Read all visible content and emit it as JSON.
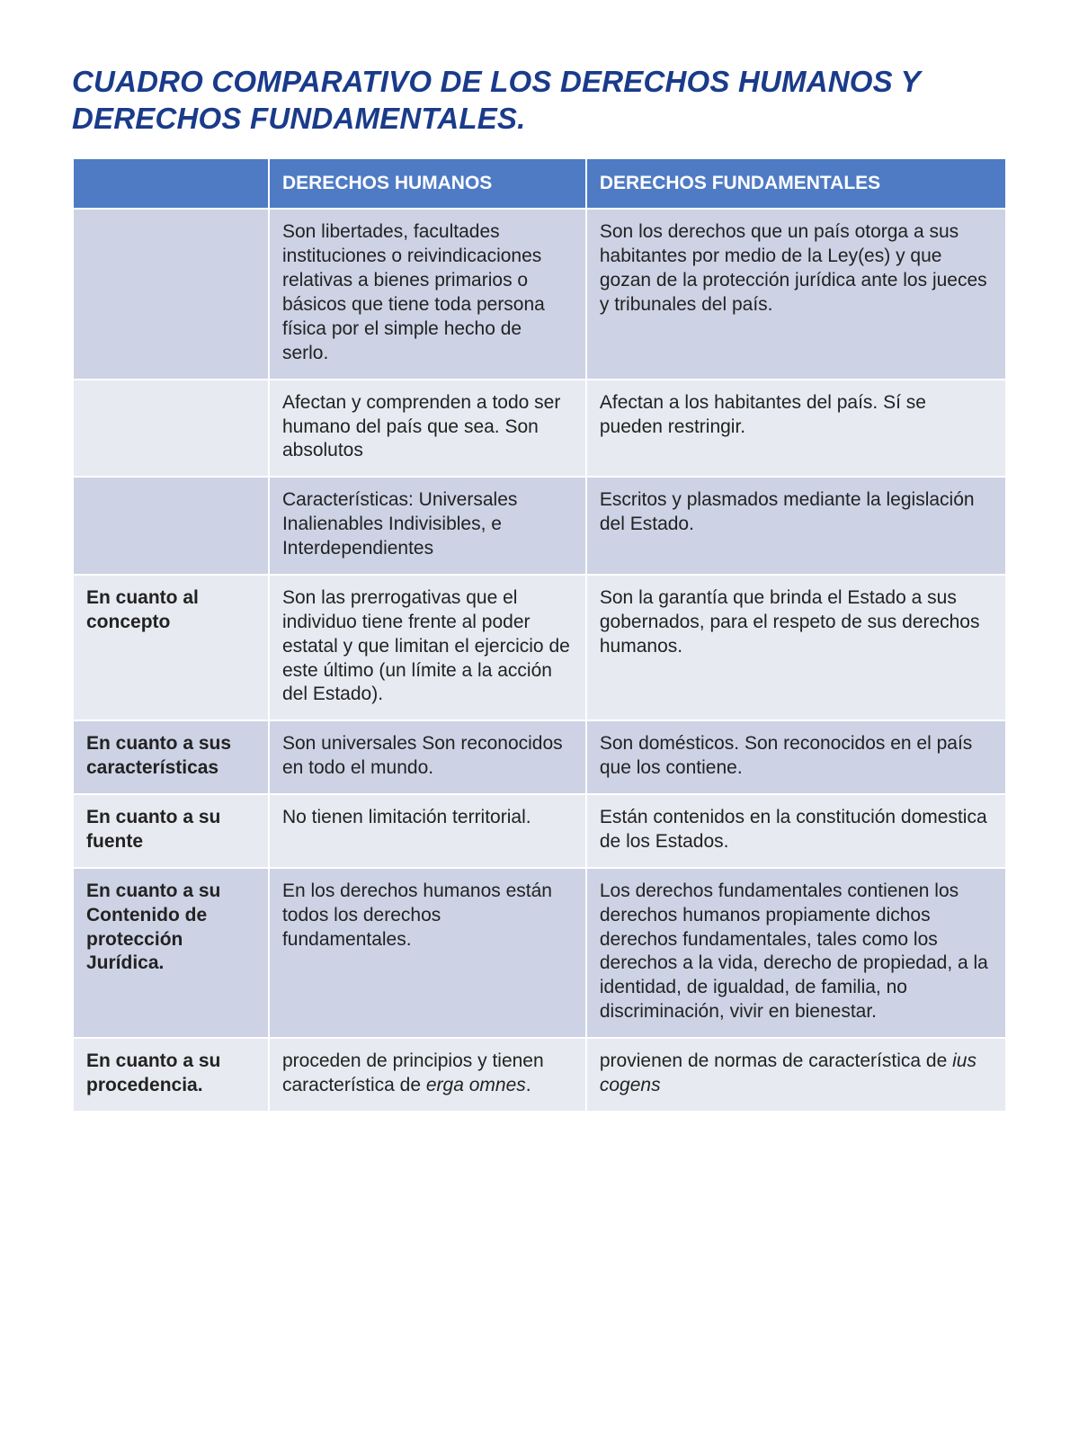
{
  "title": "CUADRO COMPARATIVO DE LOS DERECHOS HUMANOS Y DERECHOS FUNDAMENTALES.",
  "colors": {
    "title": "#1a3b8a",
    "header_bg": "#4f7bc4",
    "header_text": "#ffffff",
    "band_a": "#cdd3e5",
    "band_b": "#e8eaf1",
    "border": "#ffffff",
    "body_text": "#222222"
  },
  "typography": {
    "title_fontsize": 33,
    "title_style": "bold italic",
    "body_fontsize": 21,
    "header_fontsize": 21,
    "family": "Segoe UI / Frutiger-like sans-serif"
  },
  "table": {
    "type": "table",
    "column_widths_pct": [
      21,
      34,
      45
    ],
    "columns": {
      "c1": "",
      "c2": "DERECHOS HUMANOS",
      "c3": "DERECHOS FUNDAMENTALES"
    },
    "rows": [
      {
        "band": "a",
        "label": "",
        "humanos": "Son libertades, facultades instituciones o reivindicaciones relativas a bienes primarios o básicos que tiene toda persona física por el simple hecho de serlo.",
        "fundamentales": "Son los derechos que un país otorga a sus habitantes por medio de la Ley(es) y que gozan de la protección jurídica ante los jueces y tribunales del país."
      },
      {
        "band": "b",
        "label": "",
        "humanos": "Afectan y comprenden a todo ser humano del país que sea. Son absolutos",
        "fundamentales": "Afectan a los habitantes del país. Sí se pueden restringir."
      },
      {
        "band": "a",
        "label": "",
        "humanos": "Características: Universales Inalienables Indivisibles, e Interdependientes",
        "fundamentales": "Escritos y plasmados mediante la legislación del Estado."
      },
      {
        "band": "b",
        "label": "En cuanto al concepto",
        "humanos": "Son las prerrogativas que el individuo tiene frente al poder estatal y que limitan el ejercicio de este último (un límite a la acción del Estado).",
        "fundamentales": "Son la garantía que brinda el Estado a sus gobernados, para el respeto de sus derechos humanos."
      },
      {
        "band": "a",
        "label": "En cuanto a sus características",
        "humanos": "Son universales Son reconocidos en todo el mundo.",
        "fundamentales": "Son domésticos. Son reconocidos en el país que los contiene."
      },
      {
        "band": "b",
        "label": "En cuanto a su fuente",
        "humanos": "No tienen limitación territorial.",
        "fundamentales": "Están contenidos en la constitución domestica de los Estados."
      },
      {
        "band": "a",
        "label": "En cuanto a su Contenido de protección Jurídica.",
        "humanos": "En los derechos humanos están todos los derechos fundamentales.",
        "fundamentales": "Los derechos fundamentales contienen los derechos humanos propiamente dichos derechos fundamentales, tales como los derechos a la vida, derecho de propiedad, a la identidad, de igualdad, de familia, no discriminación, vivir en bienestar."
      },
      {
        "band": "b",
        "label": "En cuanto a su procedencia.",
        "humanos_pre": "proceden de principios y tienen característica de ",
        "humanos_ital": "erga omnes",
        "humanos_post": ".",
        "fundamentales_pre": "provienen de normas de característica de ",
        "fundamentales_ital": "ius cogens",
        "fundamentales_post": ""
      }
    ]
  }
}
